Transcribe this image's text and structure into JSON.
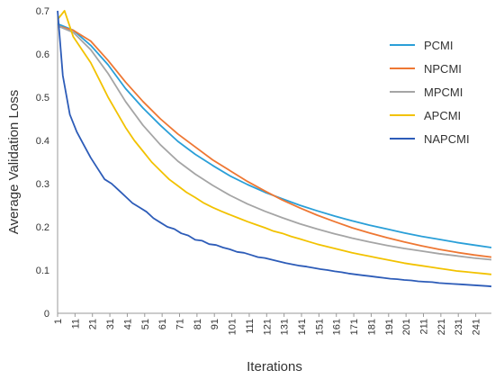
{
  "chart_data": {
    "type": "line",
    "title": "",
    "xlabel": "Iterations",
    "ylabel": "Average Validation Loss",
    "xlim": [
      1,
      250
    ],
    "ylim": [
      0,
      0.7
    ],
    "grid": false,
    "legend_position": "top-right",
    "x_tick_labels": [
      "1",
      "11",
      "21",
      "31",
      "41",
      "51",
      "61",
      "71",
      "81",
      "91",
      "101",
      "111",
      "121",
      "131",
      "141",
      "151",
      "161",
      "171",
      "181",
      "191",
      "201",
      "211",
      "221",
      "231",
      "241"
    ],
    "y_tick_labels": [
      "0",
      "0.1",
      "0.2",
      "0.3",
      "0.4",
      "0.5",
      "0.6",
      "0.7"
    ],
    "series": [
      {
        "name": "PCMI",
        "color": "#2a9fd8",
        "x": [
          1,
          10,
          20,
          30,
          40,
          50,
          60,
          70,
          80,
          90,
          100,
          110,
          120,
          130,
          140,
          150,
          160,
          170,
          180,
          190,
          200,
          210,
          220,
          230,
          240,
          250
        ],
        "y": [
          0.67,
          0.655,
          0.62,
          0.575,
          0.52,
          0.475,
          0.435,
          0.398,
          0.368,
          0.342,
          0.318,
          0.298,
          0.28,
          0.265,
          0.25,
          0.237,
          0.225,
          0.214,
          0.204,
          0.195,
          0.186,
          0.178,
          0.171,
          0.164,
          0.158,
          0.152
        ]
      },
      {
        "name": "NPCMI",
        "color": "#ee7733",
        "x": [
          1,
          10,
          20,
          30,
          40,
          50,
          60,
          70,
          80,
          90,
          100,
          110,
          120,
          130,
          140,
          150,
          160,
          170,
          180,
          190,
          200,
          210,
          220,
          230,
          240,
          250
        ],
        "y": [
          0.665,
          0.655,
          0.63,
          0.585,
          0.535,
          0.49,
          0.45,
          0.415,
          0.385,
          0.355,
          0.33,
          0.305,
          0.283,
          0.262,
          0.244,
          0.227,
          0.212,
          0.198,
          0.186,
          0.175,
          0.165,
          0.156,
          0.148,
          0.141,
          0.135,
          0.13
        ]
      },
      {
        "name": "MPCMI",
        "color": "#a5a5a5",
        "x": [
          1,
          10,
          20,
          30,
          40,
          50,
          60,
          70,
          80,
          90,
          100,
          110,
          120,
          130,
          140,
          150,
          160,
          170,
          180,
          190,
          200,
          210,
          220,
          230,
          240,
          250
        ],
        "y": [
          0.665,
          0.65,
          0.61,
          0.555,
          0.49,
          0.435,
          0.39,
          0.352,
          0.322,
          0.296,
          0.273,
          0.253,
          0.236,
          0.221,
          0.207,
          0.195,
          0.184,
          0.174,
          0.165,
          0.157,
          0.15,
          0.144,
          0.138,
          0.133,
          0.128,
          0.124
        ]
      },
      {
        "name": "APCMI",
        "color": "#f2c200",
        "x": [
          1,
          5,
          10,
          15,
          20,
          25,
          30,
          35,
          40,
          45,
          50,
          55,
          60,
          65,
          70,
          75,
          80,
          85,
          90,
          95,
          100,
          105,
          110,
          115,
          120,
          125,
          130,
          135,
          140,
          145,
          150,
          155,
          160,
          165,
          170,
          175,
          180,
          185,
          190,
          195,
          200,
          205,
          210,
          215,
          220,
          225,
          230,
          235,
          240,
          245,
          250
        ],
        "y": [
          0.68,
          0.7,
          0.64,
          0.61,
          0.58,
          0.54,
          0.5,
          0.465,
          0.43,
          0.4,
          0.375,
          0.35,
          0.33,
          0.31,
          0.295,
          0.28,
          0.268,
          0.255,
          0.245,
          0.236,
          0.228,
          0.22,
          0.212,
          0.205,
          0.198,
          0.19,
          0.185,
          0.178,
          0.172,
          0.166,
          0.16,
          0.155,
          0.15,
          0.145,
          0.14,
          0.136,
          0.132,
          0.128,
          0.124,
          0.12,
          0.116,
          0.113,
          0.11,
          0.107,
          0.104,
          0.101,
          0.098,
          0.096,
          0.094,
          0.092,
          0.09
        ]
      },
      {
        "name": "NAPCMI",
        "color": "#2d5cb8",
        "x": [
          1,
          4,
          8,
          12,
          16,
          20,
          24,
          28,
          32,
          36,
          40,
          44,
          48,
          52,
          56,
          60,
          64,
          68,
          72,
          76,
          80,
          84,
          88,
          92,
          96,
          100,
          104,
          108,
          112,
          116,
          120,
          124,
          128,
          132,
          136,
          140,
          144,
          148,
          152,
          156,
          160,
          164,
          168,
          172,
          176,
          180,
          184,
          188,
          192,
          196,
          200,
          204,
          208,
          212,
          216,
          220,
          224,
          228,
          232,
          236,
          240,
          244,
          248,
          250
        ],
        "y": [
          0.7,
          0.55,
          0.46,
          0.42,
          0.39,
          0.36,
          0.335,
          0.31,
          0.3,
          0.285,
          0.27,
          0.255,
          0.245,
          0.235,
          0.22,
          0.21,
          0.2,
          0.195,
          0.185,
          0.18,
          0.17,
          0.168,
          0.16,
          0.158,
          0.152,
          0.148,
          0.142,
          0.14,
          0.135,
          0.13,
          0.128,
          0.124,
          0.12,
          0.116,
          0.113,
          0.11,
          0.108,
          0.105,
          0.102,
          0.1,
          0.097,
          0.095,
          0.092,
          0.09,
          0.088,
          0.086,
          0.084,
          0.082,
          0.08,
          0.079,
          0.077,
          0.076,
          0.074,
          0.073,
          0.072,
          0.07,
          0.069,
          0.068,
          0.067,
          0.066,
          0.065,
          0.064,
          0.063,
          0.062
        ]
      }
    ]
  }
}
